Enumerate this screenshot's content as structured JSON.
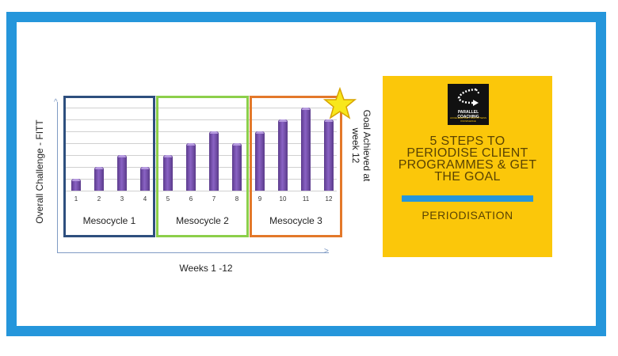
{
  "chart_data": {
    "type": "bar",
    "title": "",
    "xlabel": "Weeks 1 -12",
    "ylabel": "Overall Challenge - FITT",
    "categories": [
      "1",
      "2",
      "3",
      "4",
      "5",
      "6",
      "7",
      "8",
      "9",
      "10",
      "11",
      "12"
    ],
    "values": [
      1,
      2,
      3,
      2,
      3,
      4,
      5,
      4,
      5,
      6,
      7,
      6
    ],
    "ylim": [
      0,
      8
    ],
    "grid": true,
    "bar_color": "#6a46a0",
    "annotations": [
      {
        "text": "Mesocycle 1",
        "weeks": [
          1,
          4
        ],
        "color": "#2e4f7e"
      },
      {
        "text": "Mesocycle 2",
        "weeks": [
          5,
          8
        ],
        "color": "#8ccf4a"
      },
      {
        "text": "Mesocycle 3",
        "weeks": [
          9,
          12
        ],
        "color": "#e3782a"
      },
      {
        "text": "Goal Achieved at week 12",
        "marker": "star",
        "color": "#f8e71c"
      }
    ]
  },
  "chart": {
    "ylabel": "Overall Challenge - FITT",
    "xlabel": "Weeks 1 -12",
    "goal": "Goal Achieved at week 12",
    "mesocycles": [
      {
        "label": "Mesocycle 1",
        "color": "#2e4f7e"
      },
      {
        "label": "Mesocycle 2",
        "color": "#8ccf4a"
      },
      {
        "label": "Mesocycle 3",
        "color": "#e3782a"
      }
    ],
    "weeks": [
      "1",
      "2",
      "3",
      "4",
      "5",
      "6",
      "7",
      "8",
      "9",
      "10",
      "11",
      "12"
    ]
  },
  "promo": {
    "logo_title": "PARALLEL COACHING",
    "logo_tagline": "ACCELERATING YOUR FITNESS KNOWLEDGE",
    "headline_lines": [
      "5 STEPS TO",
      "PERIODISE CLIENT",
      "PROGRAMMES & GET",
      "THE GOAL"
    ],
    "subtitle": "PERIODISATION",
    "bg_color": "#fbc70a",
    "accent_color": "#2596db"
  },
  "frame_color": "#2596db"
}
